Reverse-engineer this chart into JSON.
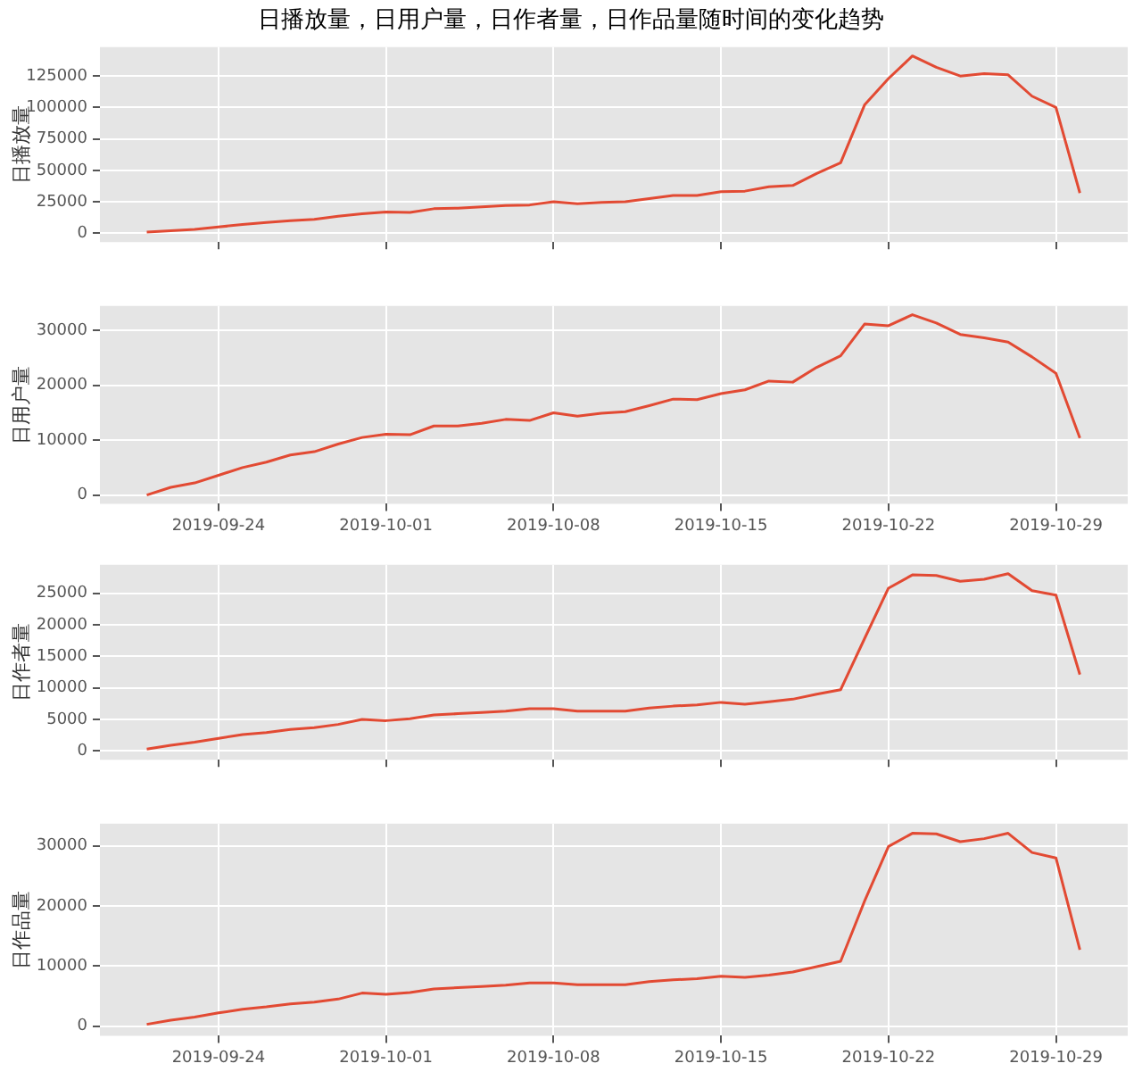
{
  "chart_data": [
    {
      "type": "line",
      "title": "日播放量，日用户量，日作者量，日作品量随时间的变化趋势",
      "ylabel": "日播放量",
      "tick_labels": "y",
      "grid": true,
      "x": [
        "2019-09-21",
        "2019-09-22",
        "2019-09-23",
        "2019-09-24",
        "2019-09-25",
        "2019-09-26",
        "2019-09-27",
        "2019-09-28",
        "2019-09-29",
        "2019-09-30",
        "2019-10-01",
        "2019-10-02",
        "2019-10-03",
        "2019-10-04",
        "2019-10-05",
        "2019-10-06",
        "2019-10-07",
        "2019-10-08",
        "2019-10-09",
        "2019-10-10",
        "2019-10-11",
        "2019-10-12",
        "2019-10-13",
        "2019-10-14",
        "2019-10-15",
        "2019-10-16",
        "2019-10-17",
        "2019-10-18",
        "2019-10-19",
        "2019-10-20",
        "2019-10-21",
        "2019-10-22",
        "2019-10-23",
        "2019-10-24",
        "2019-10-25",
        "2019-10-26",
        "2019-10-27",
        "2019-10-28",
        "2019-10-29",
        "2019-10-30"
      ],
      "series": [
        {
          "color": "#e24a33",
          "values": [
            1000,
            2000,
            3000,
            5000,
            7000,
            8500,
            10000,
            11000,
            13500,
            15500,
            17000,
            16500,
            19500,
            20000,
            21000,
            22000,
            22500,
            25000,
            23500,
            24500,
            25000,
            27500,
            30000,
            30000,
            33000,
            33500,
            37000,
            38000,
            47500,
            56000,
            102000,
            123000,
            141000,
            132000,
            125000,
            127000,
            126000,
            109000,
            100000,
            32000
          ]
        }
      ],
      "xlim": [
        "2019-09-19T01:00",
        "2019-11-01T00:00"
      ],
      "xticks": [
        "2019-09-24",
        "2019-10-01",
        "2019-10-08",
        "2019-10-15",
        "2019-10-22",
        "2019-10-29"
      ],
      "ylim": [
        -7000,
        148000
      ],
      "yticks": [
        0,
        25000,
        50000,
        75000,
        100000,
        125000
      ]
    },
    {
      "type": "line",
      "ylabel": "日用户量",
      "grid": true,
      "x": [
        "2019-09-21",
        "2019-09-22",
        "2019-09-23",
        "2019-09-24",
        "2019-09-25",
        "2019-09-26",
        "2019-09-27",
        "2019-09-28",
        "2019-09-29",
        "2019-09-30",
        "2019-10-01",
        "2019-10-02",
        "2019-10-03",
        "2019-10-04",
        "2019-10-05",
        "2019-10-06",
        "2019-10-07",
        "2019-10-08",
        "2019-10-09",
        "2019-10-10",
        "2019-10-11",
        "2019-10-12",
        "2019-10-13",
        "2019-10-14",
        "2019-10-15",
        "2019-10-16",
        "2019-10-17",
        "2019-10-18",
        "2019-10-19",
        "2019-10-20",
        "2019-10-21",
        "2019-10-22",
        "2019-10-23",
        "2019-10-24",
        "2019-10-25",
        "2019-10-26",
        "2019-10-27",
        "2019-10-28",
        "2019-10-29",
        "2019-10-30"
      ],
      "series": [
        {
          "color": "#e24a33",
          "values": [
            0,
            1400,
            2200,
            3600,
            5000,
            6000,
            7300,
            7900,
            9300,
            10500,
            11100,
            11000,
            12600,
            12600,
            13100,
            13800,
            13600,
            15000,
            14400,
            14900,
            15200,
            16300,
            17500,
            17400,
            18500,
            19200,
            20800,
            20600,
            23300,
            25400,
            31200,
            30900,
            32900,
            31400,
            29300,
            28700,
            27900,
            25200,
            22200,
            10400
          ]
        }
      ],
      "xlim": [
        "2019-09-19T01:00",
        "2019-11-01T00:00"
      ],
      "xticks": [
        "2019-09-24",
        "2019-10-01",
        "2019-10-08",
        "2019-10-15",
        "2019-10-22",
        "2019-10-29"
      ],
      "ylim": [
        -1600,
        34500
      ],
      "yticks": [
        0,
        10000,
        20000,
        30000
      ]
    },
    {
      "type": "line",
      "ylabel": "日作者量",
      "tick_labels": "y",
      "grid": true,
      "x": [
        "2019-09-21",
        "2019-09-22",
        "2019-09-23",
        "2019-09-24",
        "2019-09-25",
        "2019-09-26",
        "2019-09-27",
        "2019-09-28",
        "2019-09-29",
        "2019-09-30",
        "2019-10-01",
        "2019-10-02",
        "2019-10-03",
        "2019-10-04",
        "2019-10-05",
        "2019-10-06",
        "2019-10-07",
        "2019-10-08",
        "2019-10-09",
        "2019-10-10",
        "2019-10-11",
        "2019-10-12",
        "2019-10-13",
        "2019-10-14",
        "2019-10-15",
        "2019-10-16",
        "2019-10-17",
        "2019-10-18",
        "2019-10-19",
        "2019-10-20",
        "2019-10-21",
        "2019-10-22",
        "2019-10-23",
        "2019-10-24",
        "2019-10-25",
        "2019-10-26",
        "2019-10-27",
        "2019-10-28",
        "2019-10-29",
        "2019-10-30"
      ],
      "series": [
        {
          "color": "#e24a33",
          "values": [
            300,
            900,
            1400,
            2000,
            2600,
            2900,
            3400,
            3700,
            4200,
            5000,
            4800,
            5100,
            5700,
            5900,
            6100,
            6300,
            6700,
            6700,
            6300,
            6300,
            6300,
            6800,
            7100,
            7300,
            7700,
            7400,
            7800,
            8200,
            9000,
            9700,
            17800,
            25800,
            27900,
            27800,
            26900,
            27200,
            28100,
            25400,
            24700,
            12100
          ]
        }
      ],
      "xlim": [
        "2019-09-19T01:00",
        "2019-11-01T00:00"
      ],
      "xticks": [
        "2019-09-24",
        "2019-10-01",
        "2019-10-08",
        "2019-10-15",
        "2019-10-22",
        "2019-10-29"
      ],
      "ylim": [
        -1400,
        29500
      ],
      "yticks": [
        0,
        5000,
        10000,
        15000,
        20000,
        25000
      ]
    },
    {
      "type": "line",
      "ylabel": "日作品量",
      "grid": true,
      "x": [
        "2019-09-21",
        "2019-09-22",
        "2019-09-23",
        "2019-09-24",
        "2019-09-25",
        "2019-09-26",
        "2019-09-27",
        "2019-09-28",
        "2019-09-29",
        "2019-09-30",
        "2019-10-01",
        "2019-10-02",
        "2019-10-03",
        "2019-10-04",
        "2019-10-05",
        "2019-10-06",
        "2019-10-07",
        "2019-10-08",
        "2019-10-09",
        "2019-10-10",
        "2019-10-11",
        "2019-10-12",
        "2019-10-13",
        "2019-10-14",
        "2019-10-15",
        "2019-10-16",
        "2019-10-17",
        "2019-10-18",
        "2019-10-19",
        "2019-10-20",
        "2019-10-21",
        "2019-10-22",
        "2019-10-23",
        "2019-10-24",
        "2019-10-25",
        "2019-10-26",
        "2019-10-27",
        "2019-10-28",
        "2019-10-29",
        "2019-10-30"
      ],
      "series": [
        {
          "color": "#e24a33",
          "values": [
            300,
            1000,
            1500,
            2200,
            2800,
            3200,
            3700,
            4000,
            4500,
            5500,
            5300,
            5600,
            6200,
            6400,
            6600,
            6800,
            7200,
            7200,
            6900,
            6900,
            6900,
            7400,
            7700,
            7900,
            8300,
            8100,
            8500,
            9000,
            9900,
            10800,
            20800,
            29900,
            32100,
            32000,
            30700,
            31200,
            32100,
            28900,
            28000,
            12700
          ]
        }
      ],
      "xlim": [
        "2019-09-19T01:00",
        "2019-11-01T00:00"
      ],
      "xticks": [
        "2019-09-24",
        "2019-10-01",
        "2019-10-08",
        "2019-10-15",
        "2019-10-22",
        "2019-10-29"
      ],
      "ylim": [
        -1600,
        33700
      ],
      "yticks": [
        0,
        10000,
        20000,
        30000
      ]
    }
  ]
}
